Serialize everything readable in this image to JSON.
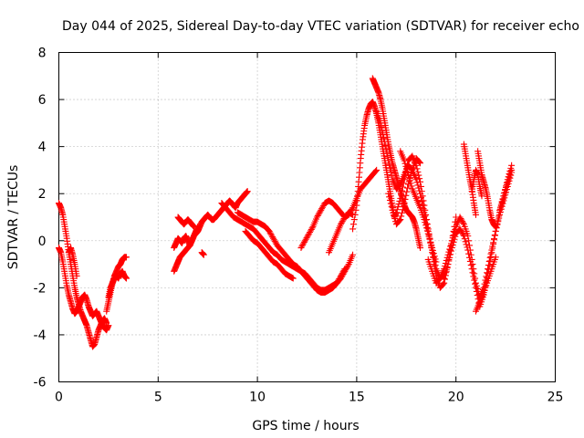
{
  "chart_data": {
    "type": "scatter",
    "title": "Day 044 of 2025, Sidereal Day-to-day VTEC variation (SDTVAR) for receiver echo",
    "xlabel": "GPS time / hours",
    "ylabel": "SDTVAR / TECUs",
    "xlim": [
      0,
      25
    ],
    "ylim": [
      -6,
      8
    ],
    "xticks": [
      "0",
      "5",
      "10",
      "15",
      "20",
      "25"
    ],
    "yticks": [
      "-6",
      "-4",
      "-2",
      "0",
      "2",
      "4",
      "6",
      "8"
    ],
    "grid": true,
    "marker": "+",
    "series": [
      {
        "name": "SDTVAR",
        "color": "#ff0000",
        "segments": [
          {
            "x": [
              0.0,
              0.1,
              0.2,
              0.3,
              0.4,
              0.5,
              0.6,
              0.7,
              0.8,
              0.9,
              1.0,
              1.1,
              1.2,
              1.3,
              1.4,
              1.5,
              1.6,
              1.7,
              1.8,
              1.9,
              2.0,
              2.1,
              2.2,
              2.3,
              2.4
            ],
            "y": [
              1.6,
              1.4,
              1.1,
              0.6,
              0.1,
              -0.5,
              -1.0,
              -1.5,
              -2.0,
              -2.4,
              -2.7,
              -3.0,
              -3.2,
              -3.4,
              -3.6,
              -3.9,
              -4.2,
              -4.5,
              -4.4,
              -4.1,
              -3.8,
              -3.6,
              -3.4,
              -3.3,
              -3.5
            ]
          },
          {
            "x": [
              0.0,
              0.1,
              0.2,
              0.3,
              0.4,
              0.5,
              0.6,
              0.7,
              0.8,
              0.9,
              1.0,
              1.1,
              1.2,
              1.3,
              1.4,
              1.5,
              1.6,
              1.7,
              1.8,
              1.9,
              2.0,
              2.1,
              2.2,
              2.3,
              2.4,
              2.5
            ],
            "y": [
              -0.3,
              -0.5,
              -0.9,
              -1.4,
              -1.9,
              -2.3,
              -2.6,
              -2.9,
              -3.1,
              -3.0,
              -2.8,
              -2.6,
              -2.4,
              -2.3,
              -2.5,
              -2.8,
              -3.0,
              -3.2,
              -3.1,
              -3.0,
              -3.2,
              -3.4,
              -3.6,
              -3.7,
              -3.8,
              -3.6
            ]
          },
          {
            "x": [
              0.5,
              0.6,
              0.7,
              0.8,
              0.9
            ],
            "y": [
              -0.5,
              -0.3,
              -0.6,
              -1.0,
              -1.5
            ]
          },
          {
            "x": [
              2.4,
              2.5,
              2.6,
              2.7,
              2.8,
              2.9,
              3.0,
              3.1,
              3.2,
              3.3,
              3.4
            ],
            "y": [
              -3.0,
              -2.6,
              -2.2,
              -1.8,
              -1.5,
              -1.3,
              -1.1,
              -1.0,
              -0.8,
              -0.7,
              -0.7
            ]
          },
          {
            "x": [
              2.5,
              2.6,
              2.7,
              2.8,
              2.9,
              3.0,
              3.1,
              3.2,
              3.3,
              3.4
            ],
            "y": [
              -2.4,
              -2.0,
              -1.8,
              -1.6,
              -1.5,
              -1.6,
              -1.4,
              -1.3,
              -1.5,
              -1.6
            ]
          },
          {
            "x": [
              5.8,
              5.9,
              6.0,
              6.1,
              6.2,
              6.3,
              6.4,
              6.5,
              6.6,
              6.7,
              6.8,
              6.9,
              7.0,
              7.1,
              7.2,
              7.3,
              7.4,
              7.5,
              7.6,
              7.7,
              7.8,
              7.9,
              8.0,
              8.1,
              8.2,
              8.3,
              8.4,
              8.5,
              8.6,
              8.7,
              8.8,
              8.9,
              9.0,
              9.1,
              9.2,
              9.3,
              9.4,
              9.5
            ],
            "y": [
              -0.3,
              -0.1,
              0.1,
              0.0,
              -0.1,
              0.1,
              0.2,
              0.0,
              -0.2,
              0.0,
              0.2,
              0.3,
              0.4,
              0.6,
              0.8,
              0.9,
              1.0,
              1.1,
              1.0,
              0.9,
              0.9,
              1.0,
              1.1,
              1.2,
              1.3,
              1.4,
              1.5,
              1.6,
              1.7,
              1.6,
              1.5,
              1.4,
              1.6,
              1.7,
              1.8,
              1.9,
              2.0,
              2.1
            ]
          },
          {
            "x": [
              5.8,
              5.9,
              6.0,
              6.1,
              6.2,
              6.3,
              6.4,
              6.5,
              6.6,
              6.7,
              6.8,
              6.9,
              7.0
            ],
            "y": [
              -1.3,
              -1.1,
              -0.9,
              -0.7,
              -0.6,
              -0.5,
              -0.4,
              -0.3,
              -0.2,
              0.0,
              0.2,
              0.4,
              0.6
            ]
          },
          {
            "x": [
              6.0,
              6.1,
              6.2,
              6.3,
              6.4,
              6.5,
              6.6,
              6.7,
              6.8
            ],
            "y": [
              1.0,
              0.9,
              0.8,
              0.7,
              0.8,
              0.9,
              0.8,
              0.7,
              0.6
            ]
          },
          {
            "x": [
              7.2,
              7.3
            ],
            "y": [
              -0.5,
              -0.6
            ]
          },
          {
            "x": [
              8.2,
              8.4,
              8.6,
              8.8,
              9.0,
              9.2,
              9.4,
              9.6,
              9.8,
              10.0,
              10.2,
              10.4,
              10.6,
              10.8,
              11.0,
              11.2,
              11.4,
              11.6,
              11.8,
              12.0,
              12.2,
              12.4,
              12.6,
              12.8,
              13.0,
              13.2,
              13.4,
              13.6,
              13.8,
              14.0,
              14.2,
              14.4,
              14.6,
              14.8
            ],
            "y": [
              1.6,
              1.4,
              1.2,
              1.0,
              0.9,
              0.8,
              0.7,
              0.6,
              0.5,
              0.3,
              0.1,
              -0.1,
              -0.3,
              -0.5,
              -0.6,
              -0.8,
              -0.9,
              -1.0,
              -1.1,
              -1.2,
              -1.3,
              -1.4,
              -1.6,
              -1.8,
              -2.0,
              -2.1,
              -2.1,
              -2.0,
              -1.9,
              -1.8,
              -1.6,
              -1.3,
              -1.0,
              -0.6
            ]
          },
          {
            "x": [
              9.0,
              9.2,
              9.4,
              9.6,
              9.8,
              10.0,
              10.2,
              10.4,
              10.6,
              10.8,
              11.0,
              11.2,
              11.4,
              11.6,
              11.8,
              12.0,
              12.2,
              12.4,
              12.6,
              12.8,
              13.0,
              13.2,
              13.4,
              13.6,
              13.8,
              14.0,
              14.2,
              14.4
            ],
            "y": [
              1.2,
              1.1,
              1.0,
              0.9,
              0.8,
              0.8,
              0.7,
              0.6,
              0.4,
              0.1,
              -0.2,
              -0.4,
              -0.6,
              -0.8,
              -1.0,
              -1.1,
              -1.3,
              -1.5,
              -1.7,
              -1.9,
              -2.1,
              -2.2,
              -2.2,
              -2.1,
              -2.0,
              -1.8,
              -1.5,
              -1.2
            ]
          },
          {
            "x": [
              9.4,
              9.6,
              9.8,
              10.0,
              10.2,
              10.4,
              10.6,
              10.8,
              11.0,
              11.2,
              11.4,
              11.6,
              11.8
            ],
            "y": [
              0.4,
              0.2,
              0.0,
              -0.1,
              -0.3,
              -0.5,
              -0.7,
              -0.9,
              -1.0,
              -1.2,
              -1.4,
              -1.5,
              -1.6
            ]
          },
          {
            "x": [
              12.2,
              12.4,
              12.6,
              12.8,
              13.0,
              13.2,
              13.4,
              13.6,
              13.8,
              14.0,
              14.2,
              14.4,
              14.6,
              14.8,
              15.0,
              15.2,
              15.4,
              15.6,
              15.8,
              16.0
            ],
            "y": [
              -0.3,
              0.0,
              0.3,
              0.6,
              1.0,
              1.3,
              1.6,
              1.7,
              1.6,
              1.4,
              1.2,
              1.0,
              1.1,
              1.4,
              1.8,
              2.2,
              2.4,
              2.6,
              2.8,
              3.0
            ]
          },
          {
            "x": [
              13.6,
              13.8,
              14.0,
              14.2,
              14.4,
              14.6,
              14.8
            ],
            "y": [
              -0.5,
              -0.1,
              0.3,
              0.7,
              1.0,
              1.2,
              1.1
            ]
          },
          {
            "x": [
              14.8,
              15.0,
              15.1,
              15.2,
              15.3,
              15.4,
              15.5,
              15.6,
              15.7,
              15.8,
              15.9,
              16.0,
              16.1,
              16.2,
              16.3,
              16.4,
              16.5,
              16.6,
              16.7,
              16.8,
              16.9,
              17.0,
              17.2,
              17.4,
              17.6,
              17.8,
              18.0,
              18.2,
              18.4,
              18.6,
              18.8,
              19.0,
              19.2,
              19.4,
              19.6,
              19.8,
              20.0
            ],
            "y": [
              0.5,
              1.5,
              2.5,
              3.5,
              4.3,
              4.9,
              5.3,
              5.6,
              5.8,
              5.9,
              5.7,
              5.4,
              5.0,
              4.5,
              4.0,
              3.5,
              3.0,
              2.5,
              2.0,
              1.5,
              1.0,
              1.2,
              1.8,
              2.6,
              3.4,
              3.6,
              3.2,
              2.5,
              1.5,
              0.5,
              -0.5,
              -1.5,
              -2.0,
              -1.8,
              -1.0,
              0.0,
              1.0
            ]
          },
          {
            "x": [
              15.8,
              15.9,
              16.0,
              16.1,
              16.2,
              16.3,
              16.4,
              16.5,
              16.6,
              16.7,
              16.8,
              16.9,
              17.0,
              17.1,
              17.2,
              17.3,
              17.4,
              17.5,
              17.6,
              17.7,
              17.8,
              17.9,
              18.0,
              18.1,
              18.2
            ],
            "y": [
              6.9,
              6.7,
              6.5,
              6.3,
              6.0,
              5.6,
              5.1,
              4.6,
              4.1,
              3.7,
              3.3,
              3.0,
              2.7,
              2.4,
              2.1,
              1.8,
              1.5,
              1.3,
              1.2,
              1.1,
              1.0,
              0.8,
              0.5,
              0.1,
              -0.3
            ]
          },
          {
            "x": [
              16.0,
              16.2,
              16.4,
              16.6,
              16.8,
              17.0,
              17.2,
              17.4,
              17.6,
              17.8,
              18.0,
              18.2,
              18.4,
              18.6,
              18.8,
              19.0,
              19.2,
              19.4
            ],
            "y": [
              5.5,
              5.0,
              4.2,
              3.4,
              2.6,
              2.2,
              2.4,
              2.8,
              3.2,
              3.0,
              2.6,
              2.0,
              1.2,
              0.4,
              -0.4,
              -1.2,
              -1.6,
              -1.4
            ]
          },
          {
            "x": [
              16.6,
              16.8,
              17.0,
              17.2,
              17.4,
              17.6,
              17.8,
              18.0,
              18.2
            ],
            "y": [
              2.0,
              1.3,
              0.7,
              0.9,
              1.6,
              2.4,
              3.0,
              3.5,
              3.3
            ]
          },
          {
            "x": [
              17.2,
              17.4,
              17.6,
              17.8,
              18.0,
              18.2,
              18.4,
              18.6,
              18.8,
              19.0
            ],
            "y": [
              3.8,
              3.4,
              2.8,
              2.2,
              1.8,
              1.4,
              0.9,
              0.3,
              -0.3,
              -0.9
            ]
          },
          {
            "x": [
              18.6,
              18.8,
              19.0,
              19.2,
              19.4,
              19.6,
              19.8,
              20.0,
              20.2,
              20.4,
              20.6,
              20.8,
              21.0,
              21.2,
              21.4,
              21.6,
              21.8,
              22.0,
              22.2,
              22.4,
              22.6,
              22.8
            ],
            "y": [
              -0.8,
              -1.3,
              -1.8,
              -1.6,
              -1.2,
              -0.6,
              0.0,
              0.6,
              1.0,
              0.7,
              0.2,
              -0.8,
              -1.8,
              -2.4,
              -2.0,
              -1.2,
              -0.4,
              0.4,
              1.2,
              1.9,
              2.5,
              3.0
            ]
          },
          {
            "x": [
              19.4,
              19.6,
              19.8,
              20.0,
              20.2,
              20.4,
              20.6,
              20.8,
              21.0,
              21.2,
              21.4,
              21.6,
              21.8,
              22.0,
              22.2,
              22.4,
              22.6,
              22.8
            ],
            "y": [
              -1.6,
              -1.0,
              -0.3,
              0.3,
              0.5,
              0.2,
              -0.4,
              -1.2,
              -2.0,
              -2.8,
              -2.3,
              -1.4,
              -0.5,
              0.4,
              1.1,
              1.7,
              2.3,
              2.9
            ]
          },
          {
            "x": [
              20.4,
              20.5,
              20.6,
              20.7,
              20.8,
              20.9,
              21.0
            ],
            "y": [
              4.1,
              3.6,
              3.1,
              2.6,
              2.2,
              1.6,
              1.1
            ]
          },
          {
            "x": [
              20.8,
              20.9,
              21.0,
              21.1,
              21.2,
              21.3
            ],
            "y": [
              2.1,
              2.6,
              3.0,
              2.8,
              2.3,
              1.9
            ]
          },
          {
            "x": [
              21.1,
              21.2,
              21.3,
              21.4,
              21.5,
              21.6,
              21.7,
              21.8,
              21.9,
              22.0
            ],
            "y": [
              3.8,
              3.3,
              2.8,
              2.5,
              2.2,
              1.8,
              1.3,
              0.9,
              0.7,
              0.6
            ]
          },
          {
            "x": [
              21.0,
              21.2,
              21.4,
              21.6,
              21.8,
              22.0
            ],
            "y": [
              -3.0,
              -2.6,
              -2.2,
              -1.7,
              -1.2,
              -0.7
            ]
          },
          {
            "x": [
              22.2,
              22.4,
              22.6,
              22.8
            ],
            "y": [
              1.3,
              1.9,
              2.6,
              3.2
            ]
          }
        ]
      }
    ]
  }
}
